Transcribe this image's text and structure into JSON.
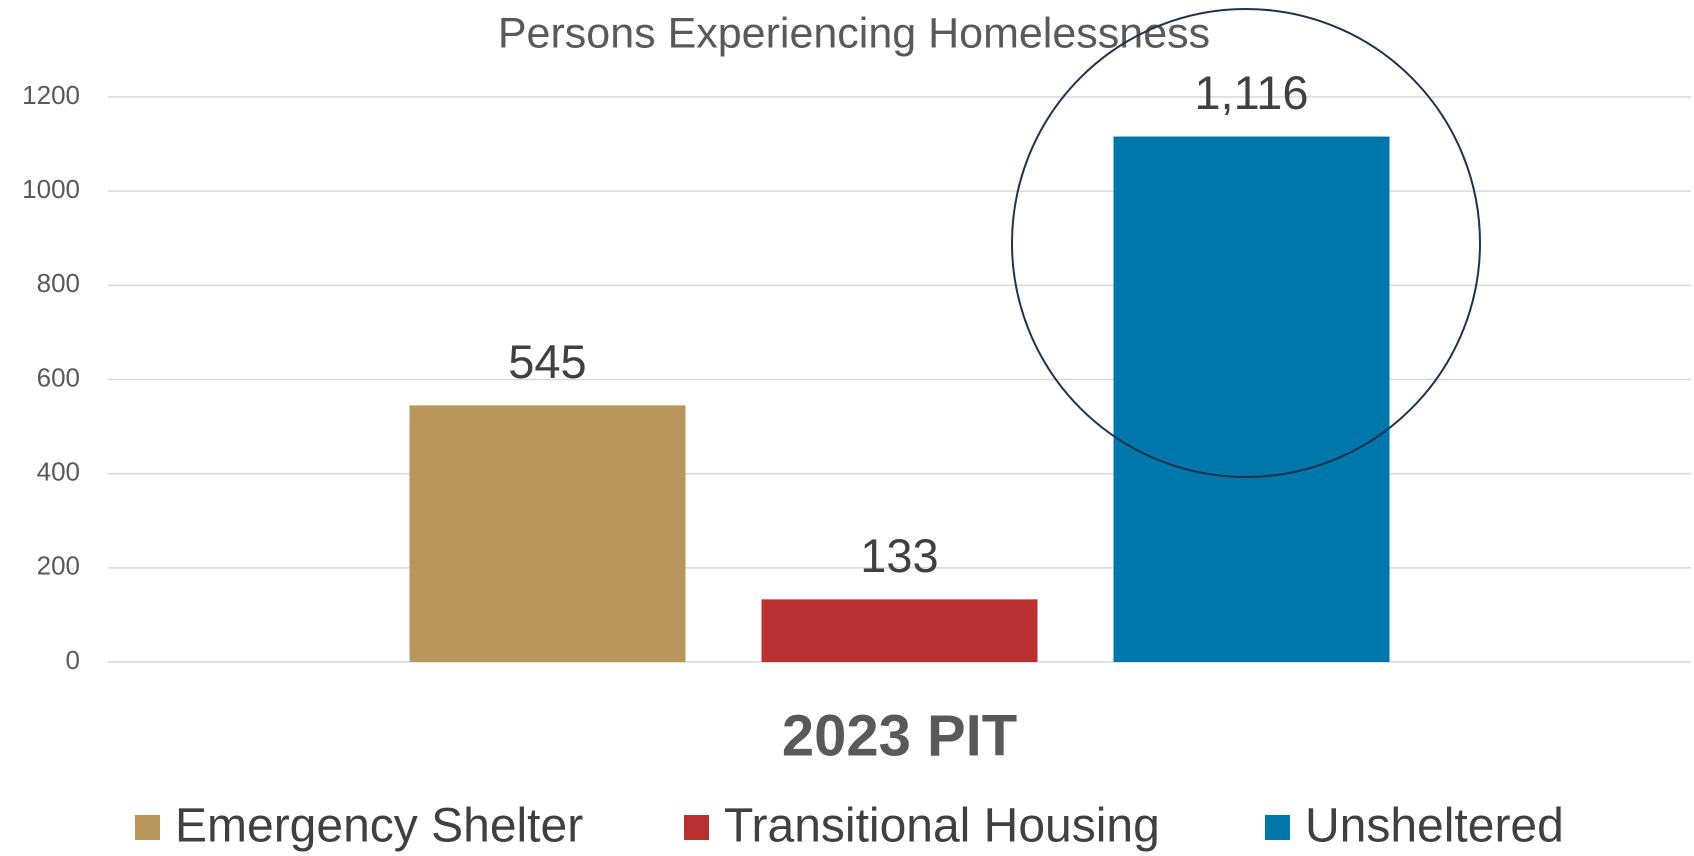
{
  "chart_data": {
    "type": "bar",
    "title": "Persons Experiencing Homelessness",
    "categories": [
      "2023 PIT"
    ],
    "series": [
      {
        "name": "Emergency Shelter",
        "color": "#b8955a",
        "values": [
          545
        ],
        "value_labels": [
          "545"
        ]
      },
      {
        "name": "Transitional Housing",
        "color": "#b8302f",
        "values": [
          133
        ],
        "value_labels": [
          "133"
        ]
      },
      {
        "name": "Unsheltered",
        "color": "#0077aa",
        "values": [
          1116
        ],
        "value_labels": [
          "1,116"
        ]
      }
    ],
    "ylim": [
      0,
      1200
    ],
    "yticks": [
      0,
      200,
      400,
      600,
      800,
      1000,
      1200
    ],
    "grid": true,
    "legend": "bottom"
  }
}
